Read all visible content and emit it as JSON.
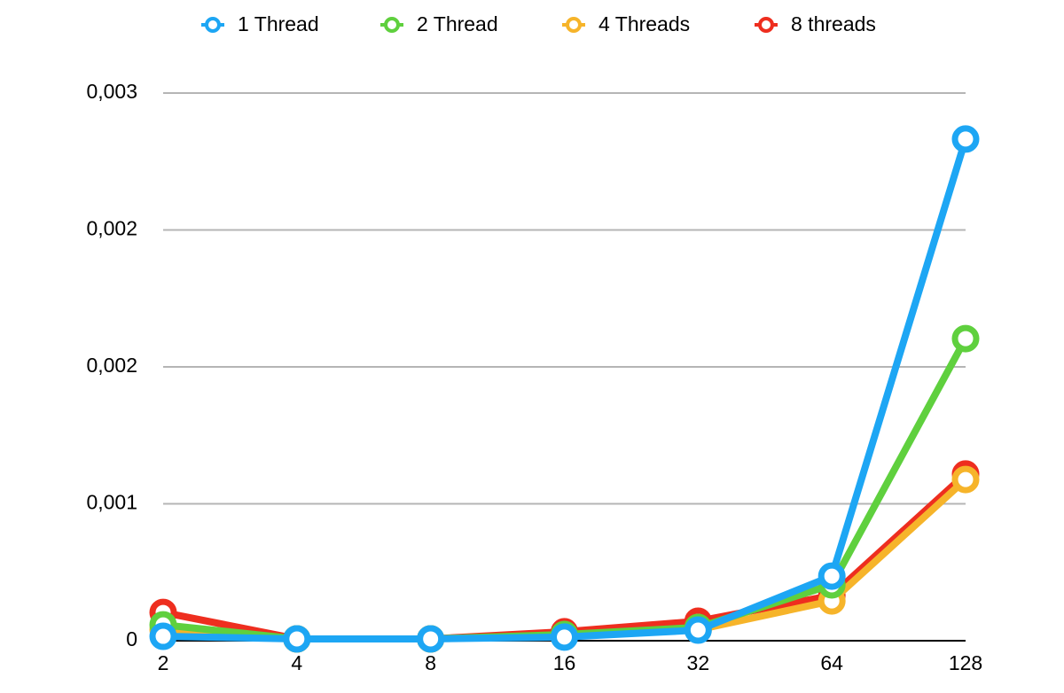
{
  "chart_data": {
    "type": "line",
    "categories": [
      "2",
      "4",
      "8",
      "16",
      "32",
      "64",
      "128"
    ],
    "series": [
      {
        "name": "8 threads",
        "color": "#ee2e1f",
        "values": [
          0.000155,
          1e-05,
          1e-05,
          4.9e-05,
          0.000107,
          0.000248,
          0.000913
        ]
      },
      {
        "name": "4 Threads",
        "color": "#f6b42a",
        "values": [
          6e-05,
          1e-05,
          1e-05,
          3e-05,
          6e-05,
          0.000218,
          0.000883
        ]
      },
      {
        "name": "2 Thread",
        "color": "#5fd03e",
        "values": [
          8.7e-05,
          1e-05,
          1e-05,
          3.4e-05,
          7.3e-05,
          0.000306,
          0.001655
        ]
      },
      {
        "name": "1 Thread",
        "color": "#1da6f4",
        "values": [
          2.4e-05,
          1e-05,
          1e-05,
          2e-05,
          5.8e-05,
          0.000354,
          0.002748
        ]
      }
    ],
    "ylim": [
      0,
      0.003
    ],
    "yticks": [
      0,
      {
        "value": 0.00075,
        "label": "0,001"
      },
      {
        "value": 0.0015,
        "label": "0,002"
      },
      {
        "value": 0.00225,
        "label": "0,002"
      },
      {
        "value": 0.003,
        "label": "0,003"
      }
    ],
    "grid": true,
    "legend": "top"
  }
}
